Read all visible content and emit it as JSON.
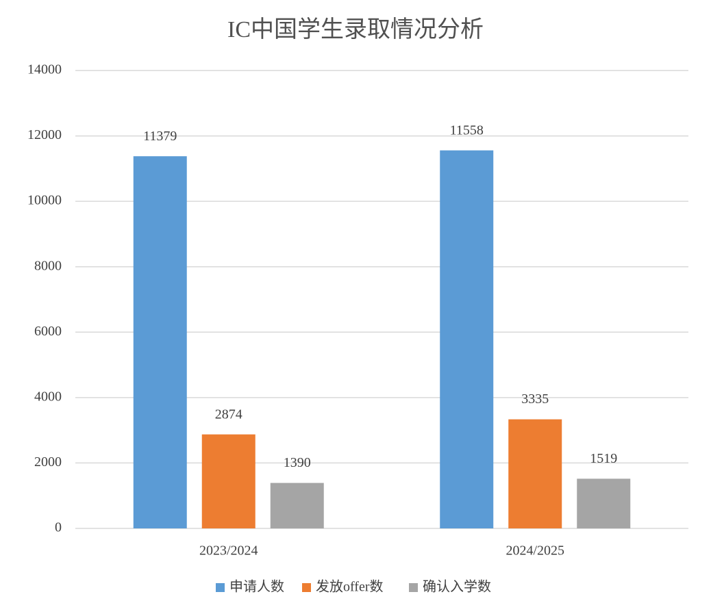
{
  "chart_data": {
    "type": "bar",
    "title": "IC中国学生录取情况分析",
    "categories": [
      "2023/2024",
      "2024/2025"
    ],
    "series": [
      {
        "name": "申请人数",
        "color": "#5b9bd5",
        "values": [
          11379,
          11558
        ]
      },
      {
        "name": "发放offer数",
        "color": "#ed7d31",
        "values": [
          2874,
          3335
        ]
      },
      {
        "name": "确认入学数",
        "color": "#a5a5a5",
        "values": [
          1390,
          1519
        ]
      }
    ],
    "ylim": [
      0,
      14000
    ],
    "yticks": [
      0,
      2000,
      4000,
      6000,
      8000,
      10000,
      12000,
      14000
    ],
    "grid": true,
    "legend": "bottom"
  }
}
